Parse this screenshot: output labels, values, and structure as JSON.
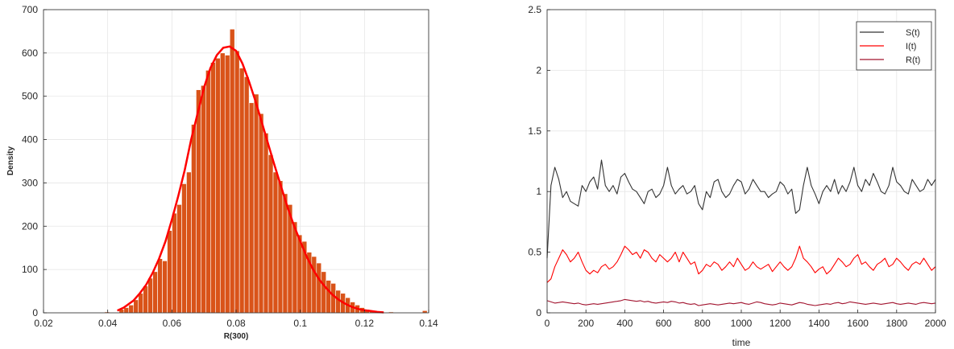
{
  "chart_data": [
    {
      "type": "bar",
      "subtype": "histogram-with-density-curve",
      "xlabel": "R(300)",
      "ylabel": "Density",
      "xlim": [
        0.02,
        0.14
      ],
      "ylim": [
        0,
        700
      ],
      "xticks": [
        "0.02",
        "0.04",
        "0.06",
        "0.08",
        "0.1",
        "0.12",
        "0.14"
      ],
      "yticks": [
        "0",
        "100",
        "200",
        "300",
        "400",
        "500",
        "600",
        "700"
      ],
      "grid": true,
      "bar_color": "#d95319",
      "curve_color": "#ff0000",
      "bin_width": 0.0015,
      "bins": [
        {
          "x": 0.0398,
          "value": 2
        },
        {
          "x": 0.0443,
          "value": 8
        },
        {
          "x": 0.0458,
          "value": 12
        },
        {
          "x": 0.0473,
          "value": 18
        },
        {
          "x": 0.0488,
          "value": 30
        },
        {
          "x": 0.0503,
          "value": 45
        },
        {
          "x": 0.0518,
          "value": 62
        },
        {
          "x": 0.0533,
          "value": 80
        },
        {
          "x": 0.0548,
          "value": 95
        },
        {
          "x": 0.0563,
          "value": 125
        },
        {
          "x": 0.0578,
          "value": 120
        },
        {
          "x": 0.0593,
          "value": 190
        },
        {
          "x": 0.0608,
          "value": 230
        },
        {
          "x": 0.0623,
          "value": 250
        },
        {
          "x": 0.0638,
          "value": 298
        },
        {
          "x": 0.0653,
          "value": 325
        },
        {
          "x": 0.0668,
          "value": 435
        },
        {
          "x": 0.0683,
          "value": 515
        },
        {
          "x": 0.0698,
          "value": 525
        },
        {
          "x": 0.0713,
          "value": 560
        },
        {
          "x": 0.0728,
          "value": 578
        },
        {
          "x": 0.0743,
          "value": 588
        },
        {
          "x": 0.0758,
          "value": 600
        },
        {
          "x": 0.0773,
          "value": 595
        },
        {
          "x": 0.0788,
          "value": 655
        },
        {
          "x": 0.0803,
          "value": 605
        },
        {
          "x": 0.0818,
          "value": 565
        },
        {
          "x": 0.0833,
          "value": 545
        },
        {
          "x": 0.0848,
          "value": 485
        },
        {
          "x": 0.0863,
          "value": 505
        },
        {
          "x": 0.0878,
          "value": 460
        },
        {
          "x": 0.0893,
          "value": 415
        },
        {
          "x": 0.0908,
          "value": 365
        },
        {
          "x": 0.0923,
          "value": 325
        },
        {
          "x": 0.0938,
          "value": 305
        },
        {
          "x": 0.0953,
          "value": 275
        },
        {
          "x": 0.0968,
          "value": 250
        },
        {
          "x": 0.0983,
          "value": 210
        },
        {
          "x": 0.0998,
          "value": 180
        },
        {
          "x": 0.1013,
          "value": 165
        },
        {
          "x": 0.1028,
          "value": 140
        },
        {
          "x": 0.1043,
          "value": 130
        },
        {
          "x": 0.1058,
          "value": 115
        },
        {
          "x": 0.1073,
          "value": 95
        },
        {
          "x": 0.1088,
          "value": 75
        },
        {
          "x": 0.1103,
          "value": 68
        },
        {
          "x": 0.1118,
          "value": 52
        },
        {
          "x": 0.1133,
          "value": 45
        },
        {
          "x": 0.1148,
          "value": 35
        },
        {
          "x": 0.1163,
          "value": 25
        },
        {
          "x": 0.1178,
          "value": 18
        },
        {
          "x": 0.1193,
          "value": 12
        },
        {
          "x": 0.1208,
          "value": 8
        },
        {
          "x": 0.1223,
          "value": 5
        },
        {
          "x": 0.1238,
          "value": 4
        },
        {
          "x": 0.1253,
          "value": 3
        },
        {
          "x": 0.1283,
          "value": 2
        },
        {
          "x": 0.1388,
          "value": 5
        }
      ],
      "density_curve": {
        "x": [
          0.043,
          0.045,
          0.048,
          0.05,
          0.052,
          0.054,
          0.056,
          0.058,
          0.06,
          0.062,
          0.064,
          0.066,
          0.068,
          0.07,
          0.072,
          0.074,
          0.076,
          0.078,
          0.08,
          0.082,
          0.084,
          0.086,
          0.088,
          0.09,
          0.092,
          0.094,
          0.096,
          0.098,
          0.1,
          0.102,
          0.104,
          0.106,
          0.108,
          0.11,
          0.112,
          0.114,
          0.116,
          0.118,
          0.12,
          0.122,
          0.124,
          0.126
        ],
        "y": [
          5,
          12,
          28,
          45,
          65,
          92,
          125,
          165,
          215,
          270,
          330,
          400,
          460,
          520,
          565,
          595,
          612,
          615,
          605,
          575,
          535,
          490,
          440,
          390,
          340,
          292,
          245,
          202,
          165,
          130,
          100,
          76,
          58,
          42,
          30,
          21,
          14,
          9,
          6,
          4,
          2,
          1
        ]
      }
    },
    {
      "type": "line",
      "xlabel": "time",
      "ylabel": "",
      "xlim": [
        0,
        2000
      ],
      "ylim": [
        0,
        2.5
      ],
      "xticks": [
        "0",
        "200",
        "400",
        "600",
        "800",
        "1000",
        "1200",
        "1400",
        "1600",
        "1800",
        "2000"
      ],
      "yticks": [
        "0",
        "0.5",
        "1",
        "1.5",
        "2",
        "2.5"
      ],
      "grid": true,
      "legend_position": "top-right",
      "legend": [
        "S(t)",
        "I(t)",
        "R(t)"
      ],
      "x": [
        0,
        20,
        40,
        60,
        80,
        100,
        120,
        140,
        160,
        180,
        200,
        220,
        240,
        260,
        280,
        300,
        320,
        340,
        360,
        380,
        400,
        420,
        440,
        460,
        480,
        500,
        520,
        540,
        560,
        580,
        600,
        620,
        640,
        660,
        680,
        700,
        720,
        740,
        760,
        780,
        800,
        820,
        840,
        860,
        880,
        900,
        920,
        940,
        960,
        980,
        1000,
        1020,
        1040,
        1060,
        1080,
        1100,
        1120,
        1140,
        1160,
        1180,
        1200,
        1220,
        1240,
        1260,
        1280,
        1300,
        1320,
        1340,
        1360,
        1380,
        1400,
        1420,
        1440,
        1460,
        1480,
        1500,
        1520,
        1540,
        1560,
        1580,
        1600,
        1620,
        1640,
        1660,
        1680,
        1700,
        1720,
        1740,
        1760,
        1780,
        1800,
        1820,
        1840,
        1860,
        1880,
        1900,
        1920,
        1940,
        1960,
        1980,
        2000
      ],
      "series": [
        {
          "name": "S(t)",
          "color": "#333333",
          "values": [
            0.45,
            1.05,
            1.2,
            1.1,
            0.95,
            1.0,
            0.92,
            0.9,
            0.88,
            1.05,
            1.0,
            1.08,
            1.12,
            1.02,
            1.26,
            1.05,
            1.0,
            1.05,
            0.98,
            1.12,
            1.15,
            1.08,
            1.02,
            1.0,
            0.95,
            0.9,
            1.0,
            1.02,
            0.95,
            0.98,
            1.05,
            1.2,
            1.05,
            0.98,
            1.02,
            1.05,
            0.98,
            1.0,
            1.05,
            0.9,
            0.85,
            1.0,
            0.95,
            1.08,
            1.1,
            1.0,
            0.95,
            0.98,
            1.05,
            1.1,
            1.08,
            0.98,
            1.02,
            1.1,
            1.05,
            1.0,
            1.0,
            0.95,
            0.98,
            1.0,
            1.08,
            1.05,
            0.98,
            1.02,
            0.82,
            0.85,
            1.05,
            1.2,
            1.05,
            0.98,
            0.9,
            1.0,
            1.05,
            1.0,
            1.1,
            0.98,
            1.05,
            1.0,
            1.08,
            1.2,
            1.05,
            1.0,
            1.1,
            1.05,
            1.15,
            1.08,
            1.0,
            0.98,
            1.05,
            1.2,
            1.08,
            1.05,
            1.0,
            0.98,
            1.1,
            1.05,
            1.0,
            1.02,
            1.1,
            1.05,
            1.1
          ]
        },
        {
          "name": "I(t)",
          "color": "#ff0000",
          "values": [
            0.25,
            0.28,
            0.38,
            0.45,
            0.52,
            0.48,
            0.42,
            0.45,
            0.5,
            0.42,
            0.35,
            0.32,
            0.35,
            0.33,
            0.38,
            0.4,
            0.36,
            0.38,
            0.42,
            0.48,
            0.55,
            0.52,
            0.48,
            0.5,
            0.45,
            0.52,
            0.5,
            0.45,
            0.42,
            0.48,
            0.45,
            0.42,
            0.45,
            0.5,
            0.42,
            0.5,
            0.45,
            0.4,
            0.42,
            0.32,
            0.35,
            0.4,
            0.38,
            0.42,
            0.4,
            0.35,
            0.38,
            0.42,
            0.38,
            0.45,
            0.4,
            0.35,
            0.37,
            0.42,
            0.38,
            0.36,
            0.38,
            0.4,
            0.34,
            0.38,
            0.42,
            0.38,
            0.35,
            0.38,
            0.45,
            0.55,
            0.45,
            0.42,
            0.38,
            0.33,
            0.36,
            0.38,
            0.32,
            0.35,
            0.4,
            0.45,
            0.42,
            0.38,
            0.4,
            0.45,
            0.48,
            0.4,
            0.42,
            0.38,
            0.35,
            0.4,
            0.42,
            0.45,
            0.38,
            0.4,
            0.45,
            0.42,
            0.38,
            0.35,
            0.4,
            0.42,
            0.4,
            0.45,
            0.4,
            0.35,
            0.38
          ]
        },
        {
          "name": "R(t)",
          "color": "#a2142f",
          "values": [
            0.1,
            0.09,
            0.08,
            0.085,
            0.09,
            0.085,
            0.08,
            0.075,
            0.08,
            0.07,
            0.065,
            0.07,
            0.075,
            0.07,
            0.075,
            0.08,
            0.085,
            0.09,
            0.095,
            0.1,
            0.11,
            0.105,
            0.1,
            0.095,
            0.1,
            0.09,
            0.095,
            0.085,
            0.08,
            0.085,
            0.09,
            0.085,
            0.095,
            0.09,
            0.08,
            0.085,
            0.075,
            0.07,
            0.075,
            0.06,
            0.065,
            0.07,
            0.075,
            0.07,
            0.065,
            0.07,
            0.075,
            0.08,
            0.075,
            0.08,
            0.085,
            0.075,
            0.07,
            0.08,
            0.09,
            0.085,
            0.075,
            0.07,
            0.065,
            0.07,
            0.08,
            0.075,
            0.07,
            0.065,
            0.075,
            0.085,
            0.08,
            0.07,
            0.065,
            0.06,
            0.065,
            0.07,
            0.075,
            0.07,
            0.08,
            0.085,
            0.075,
            0.08,
            0.09,
            0.085,
            0.08,
            0.075,
            0.07,
            0.075,
            0.08,
            0.075,
            0.07,
            0.075,
            0.08,
            0.085,
            0.075,
            0.07,
            0.075,
            0.08,
            0.075,
            0.07,
            0.08,
            0.085,
            0.08,
            0.075,
            0.08
          ]
        }
      ]
    }
  ]
}
